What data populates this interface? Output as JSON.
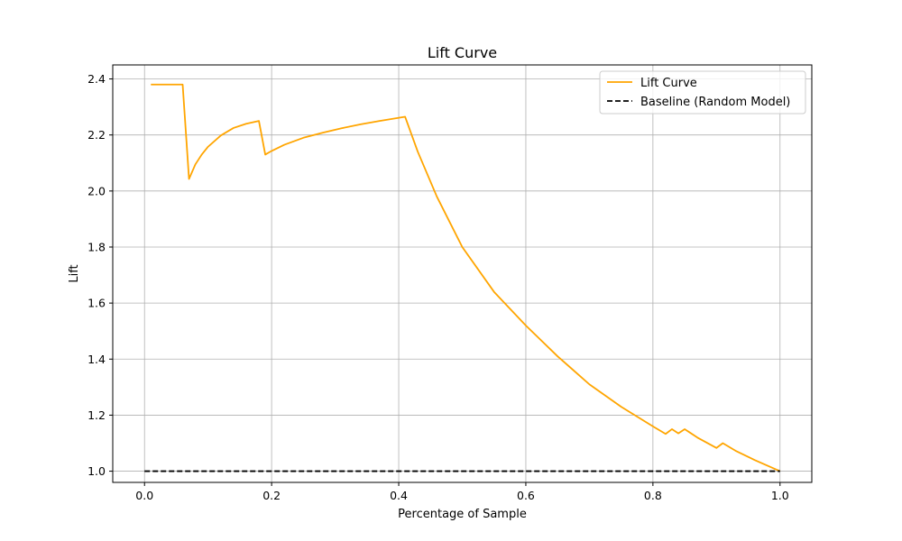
{
  "chart_data": {
    "type": "line",
    "title": "Lift Curve",
    "xlabel": "Percentage of Sample",
    "ylabel": "Lift",
    "xlim": [
      -0.05,
      1.05
    ],
    "ylim": [
      0.96,
      2.45
    ],
    "xticks": [
      0.0,
      0.2,
      0.4,
      0.6,
      0.8,
      1.0
    ],
    "xtick_labels": [
      "0.0",
      "0.2",
      "0.4",
      "0.6",
      "0.8",
      "1.0"
    ],
    "yticks": [
      1.0,
      1.2,
      1.4,
      1.6,
      1.8,
      2.0,
      2.2,
      2.4
    ],
    "ytick_labels": [
      "1.0",
      "1.2",
      "1.4",
      "1.6",
      "1.8",
      "2.0",
      "2.2",
      "2.4"
    ],
    "grid": true,
    "legend_position": "top-right",
    "series": [
      {
        "name": "Lift Curve",
        "color": "#FFA500",
        "style": "solid",
        "x": [
          0.01,
          0.06,
          0.07,
          0.08,
          0.09,
          0.1,
          0.12,
          0.14,
          0.16,
          0.18,
          0.19,
          0.2,
          0.22,
          0.25,
          0.28,
          0.31,
          0.34,
          0.37,
          0.41,
          0.43,
          0.46,
          0.5,
          0.55,
          0.6,
          0.65,
          0.7,
          0.75,
          0.8,
          0.82,
          0.83,
          0.84,
          0.85,
          0.87,
          0.9,
          0.91,
          0.93,
          0.96,
          1.0
        ],
        "y": [
          2.38,
          2.38,
          2.043,
          2.095,
          2.13,
          2.158,
          2.198,
          2.225,
          2.24,
          2.25,
          2.13,
          2.143,
          2.165,
          2.19,
          2.208,
          2.224,
          2.238,
          2.25,
          2.265,
          2.14,
          1.98,
          1.8,
          1.64,
          1.52,
          1.41,
          1.31,
          1.23,
          1.16,
          1.133,
          1.15,
          1.135,
          1.15,
          1.12,
          1.083,
          1.1,
          1.073,
          1.04,
          1.0
        ]
      },
      {
        "name": "Baseline (Random Model)",
        "color": "#000000",
        "style": "dashed",
        "x": [
          0.0,
          1.0
        ],
        "y": [
          1.0,
          1.0
        ]
      }
    ]
  }
}
